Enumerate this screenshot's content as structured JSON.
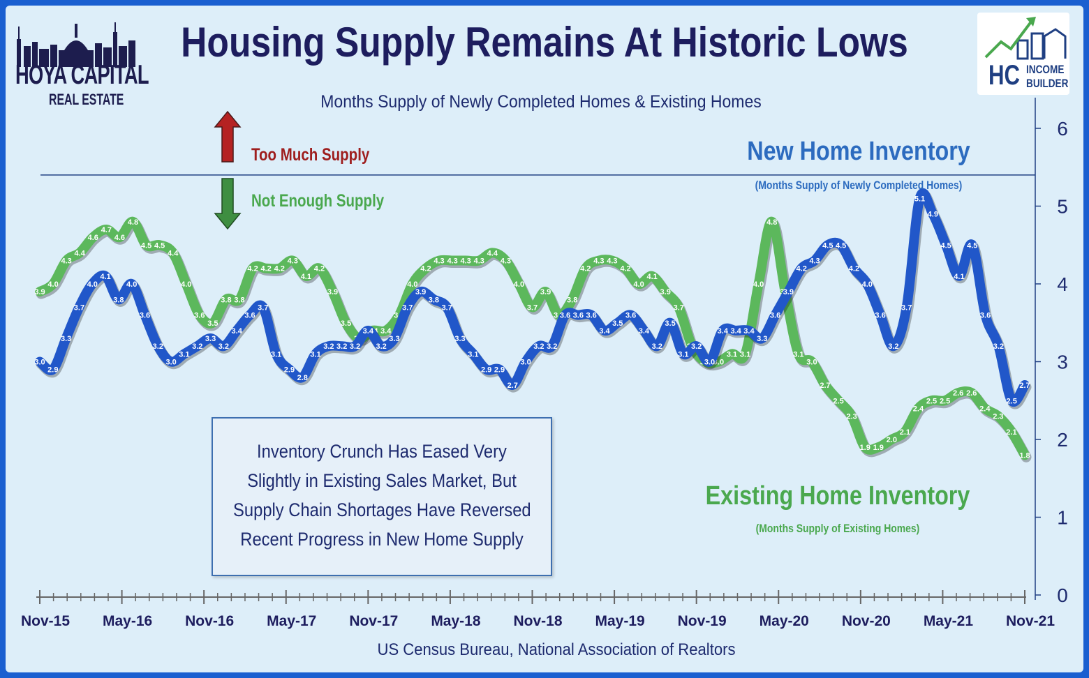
{
  "title": "Housing Supply Remains At Historic Lows",
  "subtitle": "Months Supply of Newly Completed Homes & Existing Homes",
  "source": "US Census Bureau, National Association of Realtors",
  "logo_left": {
    "name": "HOYA CAPITAL",
    "sub": "REAL ESTATE"
  },
  "logo_right": {
    "mark": "HC",
    "line1": "INCOME",
    "line2": "BUILDER"
  },
  "annotations": {
    "too_much": "Too Much Supply",
    "not_enough": "Not Enough Supply",
    "new_label": "New Home Inventory",
    "new_sub": "(Months Supply of Newly Completed Homes)",
    "existing_label": "Existing Home Inventory",
    "existing_sub": "(Months Supply of Existing Homes)"
  },
  "note": [
    "Inventory Crunch Has Eased Very",
    "Slightly in Existing Sales Market, But",
    "Supply Chain Shortages Have Reversed",
    "Recent Progress in New Home Supply"
  ],
  "colors": {
    "new_series": "#2157c9",
    "existing_series": "#5cb85c",
    "frame": "#1a5fd0",
    "too_much_arrow": "#b52222",
    "not_enough_arrow": "#3e8e41"
  },
  "chart_data": {
    "type": "line",
    "x_ticks": [
      "Nov-15",
      "May-16",
      "Nov-16",
      "May-17",
      "Nov-17",
      "May-18",
      "Nov-18",
      "May-19",
      "Nov-19",
      "May-20",
      "Nov-20",
      "May-21",
      "Nov-21"
    ],
    "ylim": [
      0,
      6
    ],
    "y_ticks": [
      0,
      1,
      2,
      3,
      4,
      5,
      6
    ],
    "y_axis_side": "right",
    "threshold_line": 5.4,
    "data_labels": true,
    "series": [
      {
        "name": "New Home Inventory",
        "color": "#2157c9",
        "values": [
          3.0,
          2.9,
          3.3,
          3.7,
          4.0,
          4.1,
          3.8,
          4.0,
          3.6,
          3.2,
          3.0,
          3.1,
          3.2,
          3.3,
          3.2,
          3.4,
          3.6,
          3.7,
          3.1,
          2.9,
          2.8,
          3.1,
          3.2,
          3.2,
          3.2,
          3.4,
          3.2,
          3.3,
          3.7,
          3.9,
          3.8,
          3.7,
          3.3,
          3.1,
          2.9,
          2.9,
          2.7,
          3.0,
          3.2,
          3.2,
          3.6,
          3.6,
          3.6,
          3.4,
          3.5,
          3.6,
          3.4,
          3.2,
          3.5,
          3.1,
          3.2,
          3.0,
          3.4,
          3.4,
          3.4,
          3.3,
          3.6,
          3.9,
          4.2,
          4.3,
          4.5,
          4.5,
          4.2,
          4.0,
          3.6,
          3.2,
          3.7,
          5.1,
          4.9,
          4.5,
          4.1,
          4.5,
          3.6,
          3.2,
          2.5,
          2.7
        ]
      },
      {
        "name": "Existing Home Inventory",
        "color": "#5cb85c",
        "values": [
          3.9,
          4.0,
          4.3,
          4.4,
          4.6,
          4.7,
          4.6,
          4.8,
          4.5,
          4.5,
          4.4,
          4.0,
          3.6,
          3.5,
          3.8,
          3.8,
          4.2,
          4.2,
          4.2,
          4.3,
          4.1,
          4.2,
          3.9,
          3.5,
          3.3,
          3.4,
          3.4,
          3.6,
          4.0,
          4.2,
          4.3,
          4.3,
          4.3,
          4.3,
          4.4,
          4.3,
          4.0,
          3.7,
          3.9,
          3.6,
          3.8,
          4.2,
          4.3,
          4.3,
          4.2,
          4.0,
          4.1,
          3.9,
          3.7,
          3.2,
          3.0,
          3.0,
          3.1,
          3.1,
          4.0,
          4.8,
          3.9,
          3.1,
          3.0,
          2.7,
          2.5,
          2.3,
          1.9,
          1.9,
          2.0,
          2.1,
          2.4,
          2.5,
          2.5,
          2.6,
          2.6,
          2.4,
          2.3,
          2.1,
          1.8
        ]
      }
    ]
  }
}
